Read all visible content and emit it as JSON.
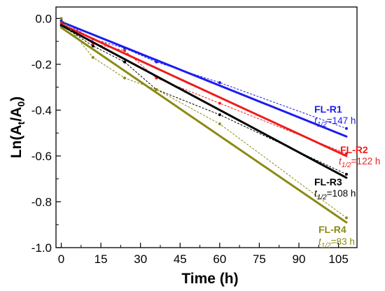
{
  "chart_data": {
    "type": "line",
    "xlabel": "Time (h)",
    "ylabel_parts": {
      "pre": "Ln(A",
      "sub1": "t",
      "mid": "/A",
      "sub2": "0",
      "post": ")"
    },
    "xlim": [
      -2,
      112
    ],
    "ylim": [
      -1.0,
      0.05
    ],
    "xticks": [
      0,
      15,
      30,
      45,
      60,
      75,
      90,
      105
    ],
    "yticks": [
      0.0,
      -0.2,
      -0.4,
      -0.6,
      -0.8,
      -1.0
    ],
    "ytick_labels": [
      "0.0",
      "-0.2",
      "-0.4",
      "-0.6",
      "-0.8",
      "-1.0"
    ],
    "series": [
      {
        "name": "FL-R1",
        "color": "#1c1cf0",
        "fit": {
          "x": [
            0,
            108
          ],
          "y": [
            -0.015,
            -0.515
          ]
        },
        "points": {
          "x": [
            0,
            12,
            24,
            36,
            60,
            108
          ],
          "y": [
            -0.01,
            -0.09,
            -0.13,
            -0.19,
            -0.28,
            -0.48
          ]
        },
        "halflife": {
          "t": "t",
          "sub": "1/2",
          "value": "=147 h"
        }
      },
      {
        "name": "FL-R2",
        "color": "#ee1c1c",
        "fit": {
          "x": [
            0,
            108
          ],
          "y": [
            -0.025,
            -0.6
          ]
        },
        "points": {
          "x": [
            0,
            12,
            24,
            36,
            60,
            108
          ],
          "y": [
            -0.02,
            -0.11,
            -0.14,
            -0.26,
            -0.37,
            -0.59
          ]
        },
        "halflife": {
          "t": "t",
          "sub": "1/2",
          "value": "=122 h"
        }
      },
      {
        "name": "FL-R3",
        "color": "#000000",
        "fit": {
          "x": [
            0,
            108
          ],
          "y": [
            -0.03,
            -0.695
          ]
        },
        "points": {
          "x": [
            0,
            12,
            24,
            36,
            60,
            108
          ],
          "y": [
            -0.03,
            -0.12,
            -0.19,
            -0.31,
            -0.42,
            -0.68
          ]
        },
        "halflife": {
          "t": "t",
          "sub": "1/2",
          "value": "=108 h"
        }
      },
      {
        "name": "FL-R4",
        "color": "#8a8a14",
        "fit": {
          "x": [
            0,
            108
          ],
          "y": [
            -0.04,
            -0.89
          ]
        },
        "points": {
          "x": [
            0,
            12,
            24,
            36,
            60,
            108
          ],
          "y": [
            0.0,
            -0.17,
            -0.26,
            -0.31,
            -0.46,
            -0.87
          ]
        },
        "halflife": {
          "t": "t",
          "sub": "1/2",
          "value": "=83 h"
        }
      }
    ]
  }
}
